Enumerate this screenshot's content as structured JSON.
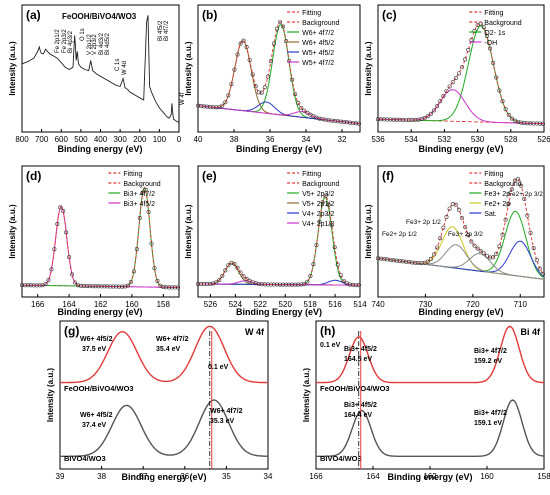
{
  "chart_data": [
    {
      "panel": "(a)",
      "type": "line",
      "title": "FeOOH/BiVO4/WO3",
      "xlabel": "Binding energy (eV)",
      "ylabel": "Intensity (a.u.)",
      "xlim": [
        800,
        0
      ],
      "xticks": [
        "800",
        "700",
        "600",
        "500",
        "400",
        "300",
        "200",
        "100",
        "0"
      ],
      "series": [
        {
          "name": "",
          "x": [
            800,
            770,
            740,
            720,
            712,
            706,
            700,
            690,
            680,
            670,
            660,
            650,
            640,
            620,
            600,
            580,
            560,
            540,
            532,
            528,
            524,
            518,
            516,
            512,
            500,
            480,
            460,
            450,
            440,
            420,
            400,
            380,
            360,
            340,
            320,
            300,
            285,
            275,
            260,
            250,
            240,
            220,
            200,
            180,
            165,
            158,
            150,
            140,
            120,
            100,
            80,
            60,
            50,
            40,
            36,
            32,
            28,
            20,
            10,
            0
          ],
          "values": [
            0.55,
            0.57,
            0.6,
            0.66,
            0.7,
            0.66,
            0.64,
            0.64,
            0.68,
            0.66,
            0.64,
            0.63,
            0.62,
            0.6,
            0.56,
            0.52,
            0.5,
            0.52,
            0.8,
            0.72,
            0.58,
            0.66,
            0.62,
            0.55,
            0.52,
            0.5,
            0.49,
            0.58,
            0.49,
            0.46,
            0.44,
            0.42,
            0.4,
            0.38,
            0.36,
            0.35,
            0.42,
            0.34,
            0.32,
            0.3,
            0.29,
            0.27,
            0.25,
            0.23,
            0.92,
            0.98,
            0.35,
            0.3,
            0.22,
            0.16,
            0.12,
            0.08,
            0.07,
            0.1,
            0.2,
            0.12,
            0.06,
            0.05,
            0.04,
            0.03
          ]
        }
      ],
      "annotations": [
        "Fe 2p1/2",
        "Fe 2p3/2",
        "Bi 4p3/2",
        "O 1s",
        "V 2p1/2",
        "V 2p3/2",
        "Bi 4d3/2",
        "Bi 4d5/2",
        "C 1s",
        "W 4d",
        "Bi 4f5/2",
        "Bi 4f7/2",
        "W 4f"
      ]
    },
    {
      "panel": "(b)",
      "type": "line",
      "xlabel": "Binding Energy (eV)",
      "ylabel": "Intensity (a.u.)",
      "xlim": [
        40,
        31
      ],
      "xticks": [
        "40",
        "38",
        "36",
        "34",
        "32"
      ],
      "legend": [
        "Fitting",
        "Background",
        "W6+ 4f7/2",
        "W6+ 4f5/2",
        "W5+ 4f5/2",
        "W5+ 4f7/2"
      ],
      "colors": [
        "#e23a3a",
        "#e23a3a",
        "#22aa22",
        "#8b6a2a",
        "#2a3acc",
        "#cc33cc"
      ],
      "peaks": [
        {
          "name": "W6+ 4f7/2",
          "center": 35.4,
          "height": 0.8
        },
        {
          "name": "W6+ 4f5/2",
          "center": 37.5,
          "height": 0.62
        },
        {
          "name": "W5+ 4f5/2",
          "center": 36.2,
          "height": 0.1
        },
        {
          "name": "W5+ 4f7/2",
          "center": 34.2,
          "height": 0.05
        }
      ]
    },
    {
      "panel": "(c)",
      "type": "line",
      "xlabel": "Binding energy (eV)",
      "ylabel": "Intensity (a.u.)",
      "xlim": [
        536,
        526
      ],
      "xticks": [
        "536",
        "534",
        "532",
        "530",
        "528",
        "526"
      ],
      "legend": [
        "Fitting",
        "Background",
        "O2- 1s",
        "-OH"
      ],
      "colors": [
        "#e23a3a",
        "#e23a3a",
        "#22aa22",
        "#cc33cc"
      ],
      "peaks": [
        {
          "name": "O2- 1s",
          "center": 529.8,
          "height": 0.85
        },
        {
          "name": "-OH",
          "center": 531.5,
          "height": 0.28
        }
      ]
    },
    {
      "panel": "(d)",
      "type": "line",
      "xlabel": "Binding energy (eV)",
      "ylabel": "Intensity (a.u.)",
      "xlim": [
        167,
        157
      ],
      "xticks": [
        "166",
        "164",
        "162",
        "160",
        "158"
      ],
      "legend": [
        "Fitting",
        "Background",
        "Bi3+ 4f7/2",
        "Bi3+ 4f5/2"
      ],
      "colors": [
        "#e23a3a",
        "#e23a3a",
        "#22aa22",
        "#cc33cc"
      ],
      "peaks": [
        {
          "name": "Bi3+ 4f7/2",
          "center": 159.2,
          "height": 0.85
        },
        {
          "name": "Bi3+ 4f5/2",
          "center": 164.5,
          "height": 0.68
        }
      ]
    },
    {
      "panel": "(e)",
      "type": "line",
      "xlabel": "Binding Energy (eV)",
      "ylabel": "Intensity (a.u.)",
      "xlim": [
        527,
        514
      ],
      "xticks": [
        "526",
        "524",
        "522",
        "520",
        "518",
        "516",
        "514"
      ],
      "legend": [
        "Fitting",
        "Background",
        "V5+ 2p3/2",
        "V5+ 2p1/2",
        "V4+ 2p3/2",
        "V4+ 2p1/2"
      ],
      "colors": [
        "#e23a3a",
        "#e23a3a",
        "#22aa22",
        "#8b6a2a",
        "#2a3acc",
        "#cc33cc"
      ],
      "peaks": [
        {
          "name": "V5+ 2p3/2",
          "center": 516.8,
          "height": 0.75
        },
        {
          "name": "V5+ 2p1/2",
          "center": 524.3,
          "height": 0.18
        },
        {
          "name": "V4+ 2p3/2",
          "center": 516.0,
          "height": 0.04
        },
        {
          "name": "V4+ 2p1/2",
          "center": 523.2,
          "height": 0.03
        }
      ]
    },
    {
      "panel": "(f)",
      "type": "line",
      "xlabel": "Binding energy (eV)",
      "ylabel": "Intensity (a.u.)",
      "xlim": [
        740,
        705
      ],
      "xticks": [
        "740",
        "730",
        "720",
        "710"
      ],
      "legend": [
        "Fitting",
        "Background",
        "Fe3+ 2p",
        "Fe2+ 2p",
        "Sat."
      ],
      "colors": [
        "#e23a3a",
        "#e23a3a",
        "#22aa22",
        "#cccc22",
        "#2a3acc"
      ],
      "annotations": [
        "Fe2+ 2p 1/2",
        "Fe3+ 2p 1/2",
        "Fe3+ 2p 3/2",
        "Fe2+ 2p 3/2"
      ],
      "peaks": [
        {
          "name": "Fe3+ 2p 3/2",
          "center": 711.0,
          "height": 0.55
        },
        {
          "name": "Fe3+ 2p 1/2",
          "center": 724.3,
          "height": 0.35
        },
        {
          "name": "Fe2+ 2p 3/2",
          "center": 710.0,
          "height": 0.3
        },
        {
          "name": "Fe2+ 2p 1/2",
          "center": 723.5,
          "height": 0.2
        },
        {
          "name": "Sat.",
          "center": 718.5,
          "height": 0.15
        }
      ]
    },
    {
      "panel": "(g)",
      "type": "line",
      "title": "W 4f",
      "xlabel": "Binding energy (eV)",
      "ylabel": "Intensity (a.u.)",
      "xlim": [
        39,
        34
      ],
      "xticks": [
        "39",
        "38",
        "37",
        "36",
        "35",
        "34"
      ],
      "series": [
        {
          "name": "FeOOH/BiVO4/WO3",
          "color": "#e23a3a",
          "peaks": [
            37.5,
            35.4
          ]
        },
        {
          "name": "BiVO4/WO3",
          "color": "#555555",
          "peaks": [
            37.4,
            35.3
          ]
        }
      ],
      "annotations": [
        "W6+ 4f5/2",
        "37.5 eV",
        "W6+ 4f7/2",
        "35.4 eV",
        "0.1 eV",
        "W6+ 4f5/2",
        "37.4 eV",
        "W6+ 4f7/2",
        "35.3 eV"
      ]
    },
    {
      "panel": "(h)",
      "type": "line",
      "title": "Bi 4f",
      "xlabel": "Binding energy (eV)",
      "ylabel": "Intensity (a.u.)",
      "xlim": [
        166,
        158
      ],
      "xticks": [
        "166",
        "164",
        "162",
        "160",
        "158"
      ],
      "series": [
        {
          "name": "FeOOH/BiVO4/WO3",
          "color": "#e23a3a",
          "peaks": [
            164.5,
            159.2
          ]
        },
        {
          "name": "BiVO4/WO3",
          "color": "#555555",
          "peaks": [
            164.4,
            159.1
          ]
        }
      ],
      "annotations": [
        "0.1 eV",
        "Bi3+ 4f5/2",
        "164.5 eV",
        "Bi3+ 4f7/2",
        "159.2 eV",
        "Bi3+ 4f5/2",
        "164.4 eV",
        "Bi3+ 4f7/2",
        "159.1 eV"
      ]
    }
  ]
}
